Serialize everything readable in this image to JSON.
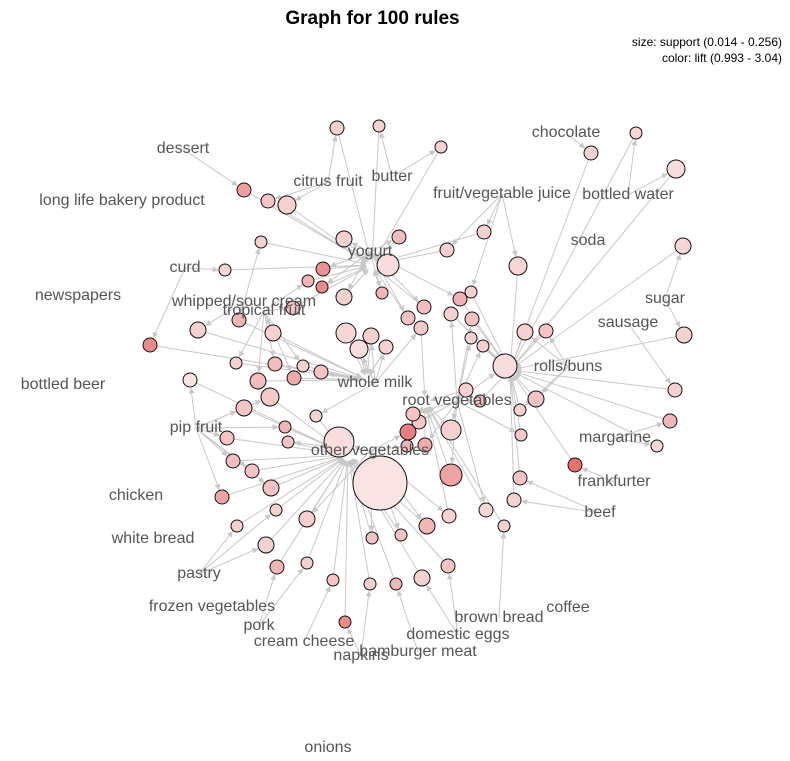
{
  "title": "Graph for 100 rules",
  "legend": {
    "size": "size: support (0.014 - 0.256)",
    "color": "color: lift (0.993 - 3.04)"
  },
  "colors": {
    "low_lift": "#fbe9e9",
    "high_lift": "#e76a6a",
    "edge": "#c8c8c8",
    "label": "#555555"
  },
  "items": [
    {
      "id": "whole_milk",
      "label": "whole milk"
    },
    {
      "id": "other_vegetables",
      "label": "other vegetables"
    },
    {
      "id": "root_vegetables",
      "label": "root vegetables"
    },
    {
      "id": "yogurt",
      "label": "yogurt"
    },
    {
      "id": "rolls_buns",
      "label": "rolls/buns"
    },
    {
      "id": "tropical_fruit",
      "label": "tropical fruit"
    },
    {
      "id": "citrus_fruit",
      "label": "citrus fruit"
    },
    {
      "id": "butter",
      "label": "butter"
    },
    {
      "id": "dessert",
      "label": "dessert"
    },
    {
      "id": "long_life_bakery_product",
      "label": "long life bakery product"
    },
    {
      "id": "curd",
      "label": "curd"
    },
    {
      "id": "newspapers",
      "label": "newspapers"
    },
    {
      "id": "whipped_sour_cream",
      "label": "whipped/sour cream"
    },
    {
      "id": "bottled_beer",
      "label": "bottled beer"
    },
    {
      "id": "pip_fruit",
      "label": "pip fruit"
    },
    {
      "id": "chicken",
      "label": "chicken"
    },
    {
      "id": "white_bread",
      "label": "white bread"
    },
    {
      "id": "pastry",
      "label": "pastry"
    },
    {
      "id": "frozen_vegetables",
      "label": "frozen vegetables"
    },
    {
      "id": "pork",
      "label": "pork"
    },
    {
      "id": "cream_cheese",
      "label": "cream cheese"
    },
    {
      "id": "napkins",
      "label": "napkins"
    },
    {
      "id": "hamburger_meat",
      "label": "hamburger meat"
    },
    {
      "id": "domestic_eggs",
      "label": "domestic eggs"
    },
    {
      "id": "brown_bread",
      "label": "brown bread"
    },
    {
      "id": "coffee",
      "label": "coffee"
    },
    {
      "id": "onions",
      "label": "onions"
    },
    {
      "id": "beef",
      "label": "beef"
    },
    {
      "id": "frankfurter",
      "label": "frankfurter"
    },
    {
      "id": "margarine",
      "label": "margarine"
    },
    {
      "id": "sausage",
      "label": "sausage"
    },
    {
      "id": "sugar",
      "label": "sugar"
    },
    {
      "id": "soda",
      "label": "soda"
    },
    {
      "id": "bottled_water",
      "label": "bottled water"
    },
    {
      "id": "fruit_vegetable_juice",
      "label": "fruit/vegetable juice"
    },
    {
      "id": "chocolate",
      "label": "chocolate"
    }
  ]
}
